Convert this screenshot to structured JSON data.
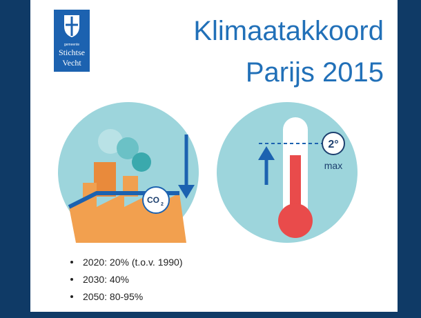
{
  "logo": {
    "lines": [
      "gemeente",
      "Stichtse",
      "Vecht"
    ]
  },
  "title": {
    "lines": [
      "Klimaatakkoord",
      "Parijs 2015"
    ]
  },
  "icons": {
    "co2": {
      "main": "CO",
      "sub": "2"
    },
    "temperature": {
      "value": "2°",
      "label": "max"
    }
  },
  "bullets": [
    "2020: 20% (t.o.v. 1990)",
    "2030: 40%",
    "2050: 80-95%"
  ]
}
